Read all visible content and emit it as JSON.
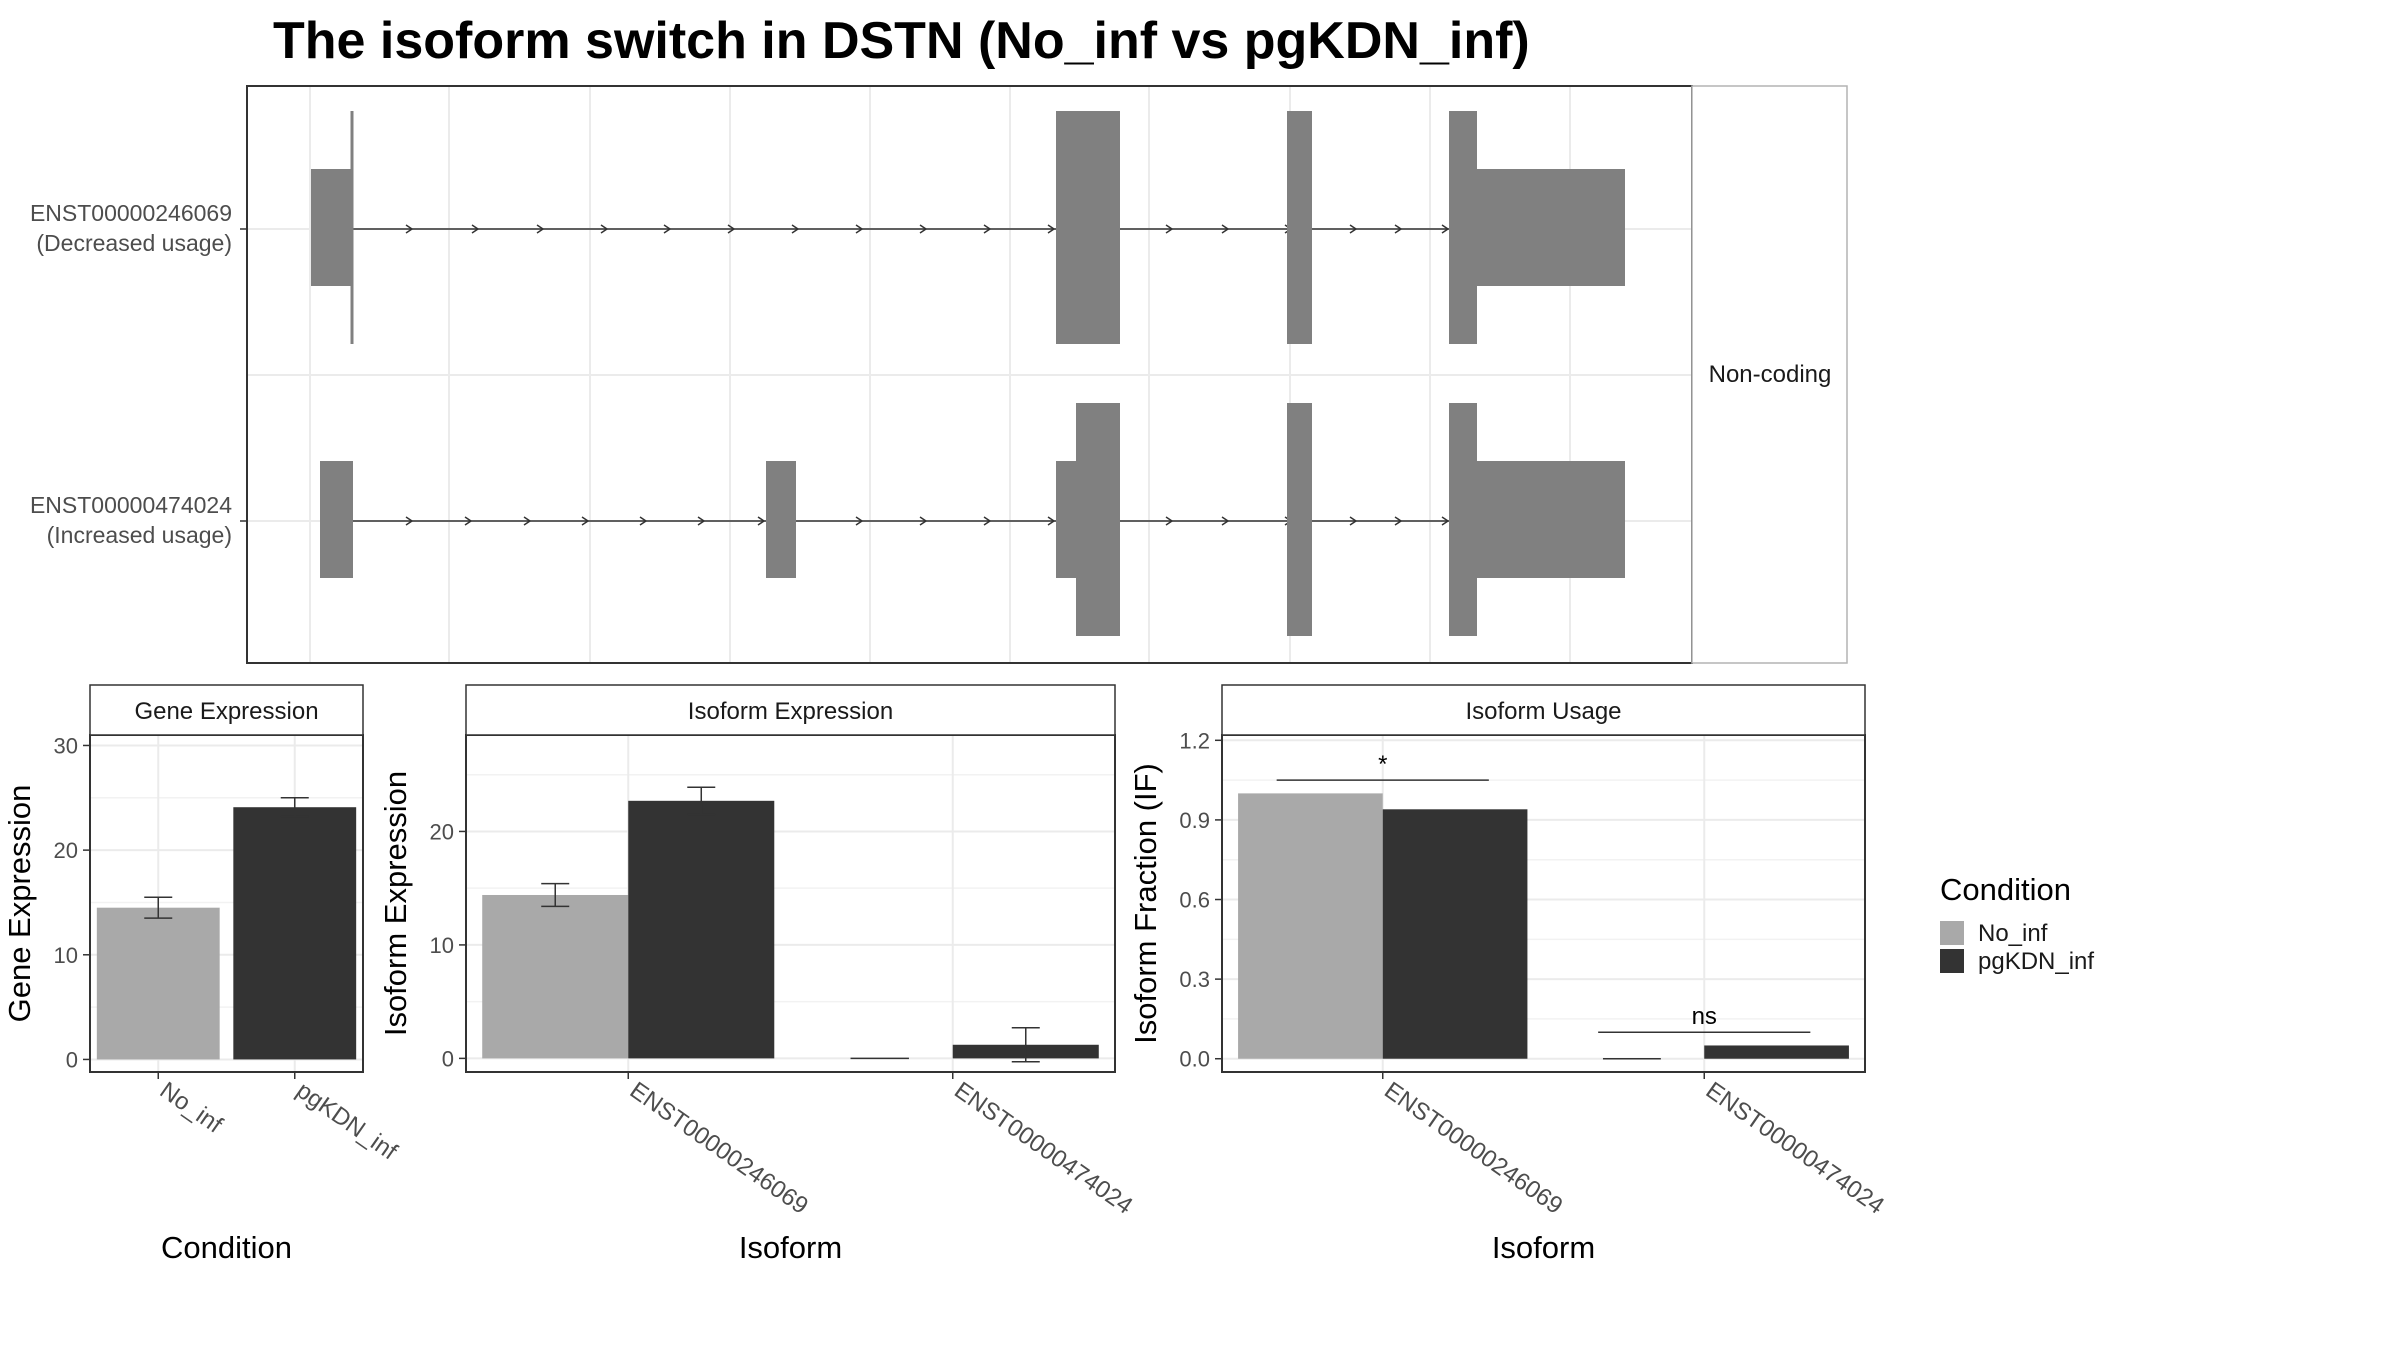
{
  "title": "The isoform switch in DSTN (No_inf vs pgKDN_inf)",
  "colors": {
    "No_inf": "#a9a9a9",
    "pgKDN_inf": "#333333",
    "exon": "#808080"
  },
  "chart_data": [
    {
      "type": "diagram",
      "name": "transcript-structure",
      "strip_label": "Non-coding",
      "transcripts": [
        {
          "id": "ENST00000246069",
          "label": "ENST00000246069",
          "sublabel": "(Decreased usage)"
        },
        {
          "id": "ENST00000474024",
          "label": "ENST00000474024",
          "sublabel": "(Increased usage)"
        }
      ]
    },
    {
      "type": "bar",
      "name": "gene-expression",
      "title": "Gene Expression",
      "xlabel": "Condition",
      "ylabel": "Gene Expression",
      "categories": [
        "No_inf",
        "pgKDN_inf"
      ],
      "values": [
        14.5,
        24.1
      ],
      "errors": [
        1.0,
        0.9
      ],
      "ylim": [
        -1.2,
        31
      ],
      "yticks": [
        0,
        10,
        20,
        30
      ],
      "grid": true
    },
    {
      "type": "bar",
      "name": "isoform-expression",
      "title": "Isoform Expression",
      "xlabel": "Isoform",
      "ylabel": "Isoform Expression",
      "categories": [
        "ENST00000246069",
        "ENST00000474024"
      ],
      "series": [
        {
          "name": "No_inf",
          "values": [
            14.4,
            0.0
          ],
          "errors": [
            1.0,
            0.0
          ]
        },
        {
          "name": "pgKDN_inf",
          "values": [
            22.7,
            1.2
          ],
          "errors": [
            1.2,
            1.5
          ]
        }
      ],
      "ylim": [
        -1.2,
        28.5
      ],
      "yticks": [
        0,
        10,
        20
      ],
      "grid": true
    },
    {
      "type": "bar",
      "name": "isoform-usage",
      "title": "Isoform Usage",
      "xlabel": "Isoform",
      "ylabel": "Isoform Fraction (IF)",
      "categories": [
        "ENST00000246069",
        "ENST00000474024"
      ],
      "series": [
        {
          "name": "No_inf",
          "values": [
            1.0,
            0.0
          ]
        },
        {
          "name": "pgKDN_inf",
          "values": [
            0.94,
            0.05
          ]
        }
      ],
      "significance": [
        {
          "category": "ENST00000246069",
          "label": "*",
          "y": 1.05
        },
        {
          "category": "ENST00000474024",
          "label": "ns",
          "y": 0.1
        }
      ],
      "ylim": [
        -0.05,
        1.22
      ],
      "yticks": [
        0.0,
        0.3,
        0.6,
        0.9,
        1.2
      ],
      "ytick_labels": [
        "0.0",
        "0.3",
        "0.6",
        "0.9",
        "1.2"
      ],
      "grid": true
    }
  ],
  "legend": {
    "title": "Condition",
    "placement": "right",
    "entries": [
      {
        "name": "No_inf",
        "color": "#a9a9a9"
      },
      {
        "name": "pgKDN_inf",
        "color": "#333333"
      }
    ]
  }
}
